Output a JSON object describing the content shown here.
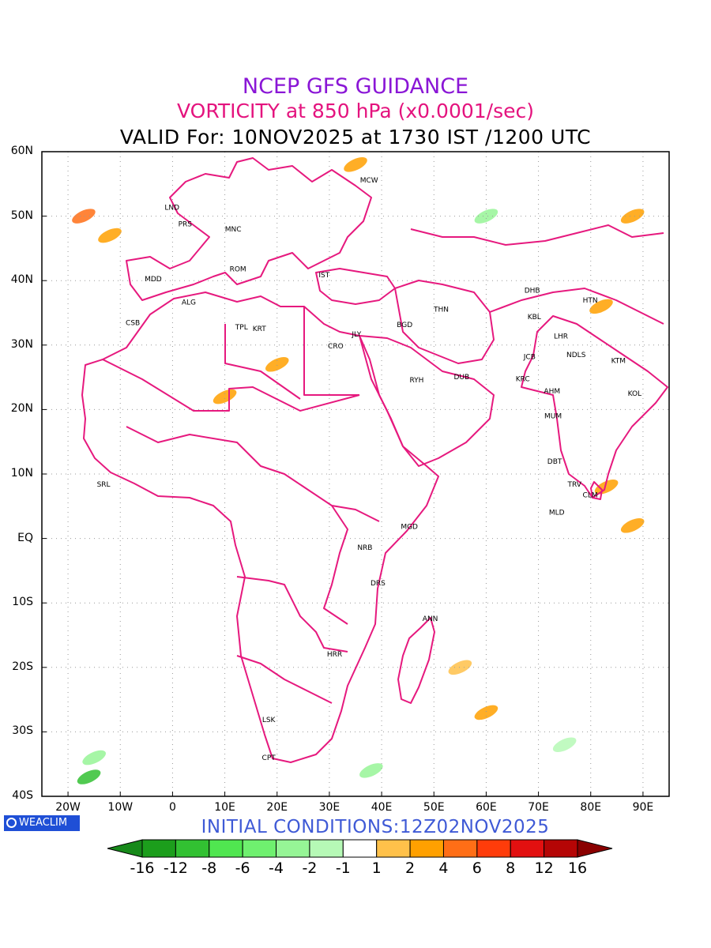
{
  "titles": {
    "line1": "NCEP GFS GUIDANCE",
    "line2": "VORTICITY at 850 hPa (x0.0001/sec)",
    "line3": "VALID For: 10NOV2025 at 1730 IST /1200 UTC"
  },
  "colors": {
    "line1": "#8a16d6",
    "line2": "#e4137e",
    "line3": "#000000",
    "border": "#e6197e",
    "initial": "#3f5ad6",
    "badge": "#1f4fd6"
  },
  "axes": {
    "lon_range": [
      -25,
      95
    ],
    "lat_range": [
      -40,
      60
    ],
    "y_ticks": [
      {
        "lat": 60,
        "label": "60N"
      },
      {
        "lat": 50,
        "label": "50N"
      },
      {
        "lat": 40,
        "label": "40N"
      },
      {
        "lat": 30,
        "label": "30N"
      },
      {
        "lat": 20,
        "label": "20N"
      },
      {
        "lat": 10,
        "label": "10N"
      },
      {
        "lat": 0,
        "label": "EQ"
      },
      {
        "lat": -10,
        "label": "10S"
      },
      {
        "lat": -20,
        "label": "20S"
      },
      {
        "lat": -30,
        "label": "30S"
      },
      {
        "lat": -40,
        "label": "40S"
      }
    ],
    "x_ticks": [
      {
        "lon": -20,
        "label": "20W"
      },
      {
        "lon": -10,
        "label": "10W"
      },
      {
        "lon": 0,
        "label": "0"
      },
      {
        "lon": 10,
        "label": "10E"
      },
      {
        "lon": 20,
        "label": "20E"
      },
      {
        "lon": 30,
        "label": "30E"
      },
      {
        "lon": 40,
        "label": "40E"
      },
      {
        "lon": 50,
        "label": "50E"
      },
      {
        "lon": 60,
        "label": "60E"
      },
      {
        "lon": 70,
        "label": "70E"
      },
      {
        "lon": 80,
        "label": "80E"
      },
      {
        "lon": 90,
        "label": "90E"
      }
    ],
    "grid": "dotted"
  },
  "stations": [
    {
      "code": "MCW",
      "lon": 37.6,
      "lat": 55.7
    },
    {
      "code": "LND",
      "lon": -0.1,
      "lat": 51.5
    },
    {
      "code": "PRS",
      "lon": 2.4,
      "lat": 48.9
    },
    {
      "code": "MNC",
      "lon": 11.6,
      "lat": 48.1
    },
    {
      "code": "ROM",
      "lon": 12.5,
      "lat": 41.9
    },
    {
      "code": "MDD",
      "lon": -3.7,
      "lat": 40.4
    },
    {
      "code": "IST",
      "lon": 29.0,
      "lat": 41.0
    },
    {
      "code": "ALG",
      "lon": 3.1,
      "lat": 36.8
    },
    {
      "code": "CSB",
      "lon": -7.6,
      "lat": 33.6
    },
    {
      "code": "TPL",
      "lon": 13.2,
      "lat": 32.9
    },
    {
      "code": "KRT",
      "lon": 16.6,
      "lat": 32.7
    },
    {
      "code": "JLY",
      "lon": 35.2,
      "lat": 31.8
    },
    {
      "code": "CRO",
      "lon": 31.2,
      "lat": 30.0
    },
    {
      "code": "BGD",
      "lon": 44.4,
      "lat": 33.3
    },
    {
      "code": "THN",
      "lon": 51.4,
      "lat": 35.7
    },
    {
      "code": "DHB",
      "lon": 68.8,
      "lat": 38.6
    },
    {
      "code": "HTN",
      "lon": 79.9,
      "lat": 37.1
    },
    {
      "code": "KBL",
      "lon": 69.2,
      "lat": 34.5
    },
    {
      "code": "LHR",
      "lon": 74.3,
      "lat": 31.5
    },
    {
      "code": "JCB",
      "lon": 68.3,
      "lat": 28.3
    },
    {
      "code": "NDLS",
      "lon": 77.2,
      "lat": 28.6
    },
    {
      "code": "KTM",
      "lon": 85.3,
      "lat": 27.7
    },
    {
      "code": "RYH",
      "lon": 46.7,
      "lat": 24.7
    },
    {
      "code": "DUB",
      "lon": 55.3,
      "lat": 25.2
    },
    {
      "code": "KRC",
      "lon": 67.0,
      "lat": 24.9
    },
    {
      "code": "AHM",
      "lon": 72.6,
      "lat": 23.0
    },
    {
      "code": "KOL",
      "lon": 88.4,
      "lat": 22.6
    },
    {
      "code": "MUM",
      "lon": 72.8,
      "lat": 19.1
    },
    {
      "code": "DBT",
      "lon": 73.1,
      "lat": 12.1
    },
    {
      "code": "TRV",
      "lon": 76.9,
      "lat": 8.5
    },
    {
      "code": "CLM",
      "lon": 79.9,
      "lat": 6.9
    },
    {
      "code": "MLD",
      "lon": 73.5,
      "lat": 4.2
    },
    {
      "code": "SRL",
      "lon": -13.2,
      "lat": 8.5
    },
    {
      "code": "MGD",
      "lon": 45.3,
      "lat": 2.0
    },
    {
      "code": "NRB",
      "lon": 36.8,
      "lat": -1.3
    },
    {
      "code": "DRS",
      "lon": 39.3,
      "lat": -6.8
    },
    {
      "code": "ANN",
      "lon": 49.3,
      "lat": -12.3
    },
    {
      "code": "HRR",
      "lon": 31.0,
      "lat": -17.8
    },
    {
      "code": "LSK",
      "lon": 18.4,
      "lat": -28.0
    },
    {
      "code": "CPT",
      "lon": 18.4,
      "lat": -33.9
    }
  ],
  "badge": {
    "text": "WEACLIM",
    "icon": "weaclim-logo-icon"
  },
  "initial_conditions": "INITIAL CONDITIONS:12Z02NOV2025",
  "colorbar": {
    "labels": [
      "-16",
      "-12",
      "-8",
      "-6",
      "-4",
      "-2",
      "-1",
      "1",
      "2",
      "4",
      "6",
      "8",
      "12",
      "16"
    ],
    "colors": [
      "#1c9e1c",
      "#32c132",
      "#50e650",
      "#6ff06f",
      "#96f596",
      "#b6f9b6",
      "#ffffff",
      "#ffc14a",
      "#ffa000",
      "#ff6e16",
      "#ff3c0a",
      "#e21010",
      "#b50505"
    ],
    "end_low": "#17891a",
    "end_high": "#8a0000"
  },
  "vorticity_shading": [
    {
      "lon": -17,
      "lat": 50,
      "value": 6
    },
    {
      "lon": -12,
      "lat": 47,
      "value": 4
    },
    {
      "lon": 35,
      "lat": 58,
      "value": 4
    },
    {
      "lon": 60,
      "lat": 50,
      "value": -2
    },
    {
      "lon": 88,
      "lat": 50,
      "value": 4
    },
    {
      "lon": 82,
      "lat": 36,
      "value": 2
    },
    {
      "lon": 83,
      "lat": 8,
      "value": 2
    },
    {
      "lon": 88,
      "lat": 2,
      "value": 2
    },
    {
      "lon": 55,
      "lat": -20,
      "value": 1
    },
    {
      "lon": 60,
      "lat": -27,
      "value": 2
    },
    {
      "lon": 75,
      "lat": -32,
      "value": -1
    },
    {
      "lon": -15,
      "lat": -34,
      "value": -4
    },
    {
      "lon": -16,
      "lat": -37,
      "value": -12
    },
    {
      "lon": 10,
      "lat": 22,
      "value": 2
    },
    {
      "lon": 20,
      "lat": 27,
      "value": 2
    },
    {
      "lon": 38,
      "lat": -36,
      "value": -2
    }
  ]
}
